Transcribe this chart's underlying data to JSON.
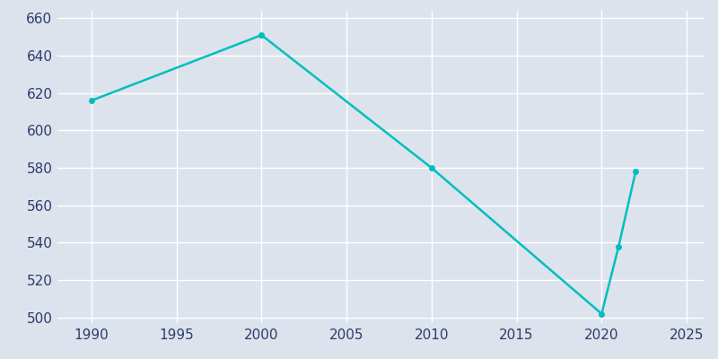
{
  "years": [
    1990,
    2000,
    2010,
    2020,
    2021,
    2022
  ],
  "values": [
    616,
    651,
    580,
    502,
    538,
    578
  ],
  "line_color": "#00BFBF",
  "bg_color": "#DDE3EC",
  "grid_color": "#FFFFFF",
  "xlim": [
    1988,
    2026
  ],
  "ylim": [
    497,
    664
  ],
  "xticks": [
    1990,
    1995,
    2000,
    2005,
    2010,
    2015,
    2020,
    2025
  ],
  "yticks": [
    500,
    520,
    540,
    560,
    580,
    600,
    620,
    640,
    660
  ],
  "line_width": 1.8,
  "marker": "o",
  "marker_size": 4
}
